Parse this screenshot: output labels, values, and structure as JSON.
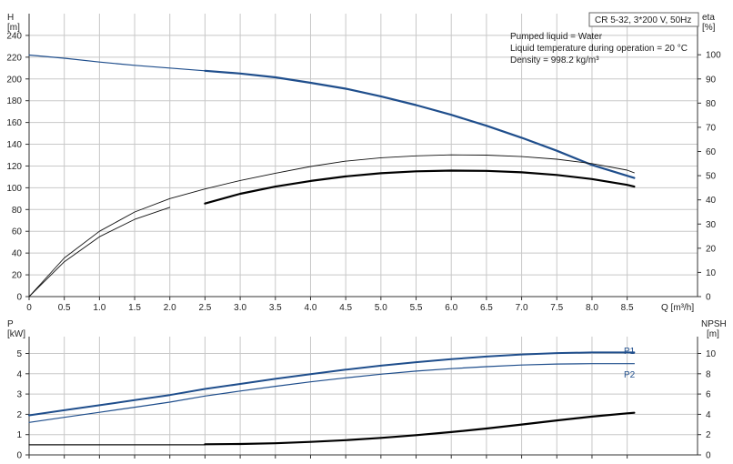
{
  "chart_data": [
    {
      "type": "line",
      "title_box": "CR 5-32, 3*200 V, 50Hz",
      "info_lines": [
        "Pumped liquid = Water",
        "Liquid temperature during operation = 20 °C",
        "Density = 998.2 kg/m³"
      ],
      "ylabel_left": [
        "H",
        "[m]"
      ],
      "ylabel_right": [
        "eta",
        "[%]"
      ],
      "xlabel": "Q [m³/h]",
      "xlim": [
        0,
        9.5
      ],
      "x_ticks": [
        0,
        0.5,
        1.0,
        1.5,
        2.0,
        2.5,
        3.0,
        3.5,
        4.0,
        4.5,
        5.0,
        5.5,
        6.0,
        6.5,
        7.0,
        7.5,
        8.0,
        8.5
      ],
      "x_tick_labels": [
        "0",
        "0.5",
        "1.0",
        "1.5",
        "2.0",
        "2.5",
        "3.0",
        "3.5",
        "4.0",
        "4.5",
        "5.0",
        "5.5",
        "6.0",
        "6.5",
        "7.0",
        "7.5",
        "8.0",
        "8.5"
      ],
      "ylim_left": [
        0,
        260
      ],
      "y_ticks_left": [
        "0",
        "20",
        "40",
        "60",
        "80",
        "100",
        "120",
        "140",
        "160",
        "180",
        "200",
        "220",
        "240"
      ],
      "ylim_right": [
        0,
        117
      ],
      "y_ticks_right": [
        "0",
        "10",
        "20",
        "30",
        "40",
        "50",
        "60",
        "70",
        "80",
        "90",
        "100"
      ],
      "grid": true,
      "series": [
        {
          "role": "head_curve_extended",
          "axis": "left",
          "color": "#1f4e8c",
          "x": [
            0,
            0.5,
            1.0,
            1.5,
            2.0,
            2.5
          ],
          "y": [
            222,
            219,
            215.5,
            212.5,
            210,
            207.5
          ]
        },
        {
          "role": "head_curve_operating",
          "axis": "left",
          "color": "#1f4e8c",
          "x": [
            2.5,
            3.0,
            3.5,
            4.0,
            4.5,
            5.0,
            5.5,
            6.0,
            6.5,
            7.0,
            7.5,
            8.0,
            8.5,
            8.6
          ],
          "y": [
            207.5,
            205,
            201.5,
            196.5,
            191,
            184,
            176,
            167,
            157,
            146,
            134,
            121,
            111,
            109
          ]
        },
        {
          "role": "eta_curve_thin",
          "axis": "right",
          "color": "#111111",
          "x": [
            0,
            0.5,
            1.0,
            1.5,
            2.0,
            2.5,
            3.0,
            3.5,
            4.0,
            4.5,
            5.0,
            5.5,
            6.0,
            6.5,
            7.0,
            7.5,
            8.0,
            8.5,
            8.6
          ],
          "y": [
            0,
            16,
            27,
            35,
            40.5,
            44.5,
            48,
            51,
            53.8,
            56,
            57.4,
            58.2,
            58.6,
            58.5,
            57.9,
            56.8,
            55,
            52.3,
            51.2
          ]
        },
        {
          "role": "eta_curve_thin_2",
          "axis": "left",
          "color": "#111111",
          "x": [
            0,
            0.5,
            1.0,
            1.5,
            2.0
          ],
          "y": [
            0,
            32,
            55,
            71,
            82
          ]
        },
        {
          "role": "eta_curve_operating",
          "axis": "right",
          "color": "#000000",
          "x": [
            2.5,
            3.0,
            3.5,
            4.0,
            4.5,
            5.0,
            5.5,
            6.0,
            6.5,
            7.0,
            7.5,
            8.0,
            8.5,
            8.6
          ],
          "y": [
            38.5,
            42.5,
            45.5,
            47.8,
            49.7,
            51,
            51.8,
            52.1,
            52,
            51.4,
            50.3,
            48.6,
            46.2,
            45.5
          ]
        }
      ]
    },
    {
      "type": "line",
      "ylabel_left": [
        "P",
        "[kW]"
      ],
      "ylabel_right": [
        "NPSH",
        "[m]"
      ],
      "xlim": [
        0,
        9.5
      ],
      "ylim_left": [
        0,
        5.83
      ],
      "y_ticks_left": [
        "0",
        "1",
        "2",
        "3",
        "4",
        "5"
      ],
      "ylim_right": [
        0,
        11.66
      ],
      "y_ticks_right": [
        "0",
        "2",
        "4",
        "6",
        "8",
        "10"
      ],
      "grid": true,
      "series": [
        {
          "name": "P1",
          "axis": "left",
          "color": "#1f4e8c",
          "x": [
            0,
            0.5,
            1.0,
            1.5,
            2.0,
            2.5,
            3.0,
            3.5,
            4.0,
            4.5,
            5.0,
            5.5,
            6.0,
            6.5,
            7.0,
            7.5,
            8.0,
            8.5,
            8.6
          ],
          "y": [
            1.95,
            2.2,
            2.45,
            2.7,
            2.95,
            3.25,
            3.5,
            3.75,
            3.98,
            4.2,
            4.4,
            4.57,
            4.72,
            4.85,
            4.95,
            5.02,
            5.05,
            5.05,
            5.05
          ]
        },
        {
          "name": "P2",
          "axis": "left",
          "color": "#1f4e8c",
          "x": [
            0,
            0.5,
            1.0,
            1.5,
            2.0,
            2.5,
            3.0,
            3.5,
            4.0,
            4.5,
            5.0,
            5.5,
            6.0,
            6.5,
            7.0,
            7.5,
            8.0,
            8.5,
            8.6
          ],
          "y": [
            1.6,
            1.85,
            2.1,
            2.35,
            2.6,
            2.9,
            3.15,
            3.38,
            3.6,
            3.8,
            3.98,
            4.13,
            4.25,
            4.35,
            4.43,
            4.48,
            4.5,
            4.5,
            4.5
          ]
        },
        {
          "role": "npsh_extended",
          "axis": "right",
          "color": "#111111",
          "x": [
            0,
            2.5
          ],
          "y": [
            1.0,
            1.0
          ]
        },
        {
          "role": "npsh_operating",
          "axis": "right",
          "color": "#000000",
          "x": [
            2.5,
            3.0,
            3.5,
            4.0,
            4.5,
            5.0,
            5.5,
            6.0,
            6.5,
            7.0,
            7.5,
            8.0,
            8.5,
            8.6
          ],
          "y": [
            1.05,
            1.08,
            1.15,
            1.28,
            1.45,
            1.68,
            1.95,
            2.25,
            2.6,
            3.0,
            3.4,
            3.78,
            4.1,
            4.15
          ]
        }
      ]
    }
  ]
}
